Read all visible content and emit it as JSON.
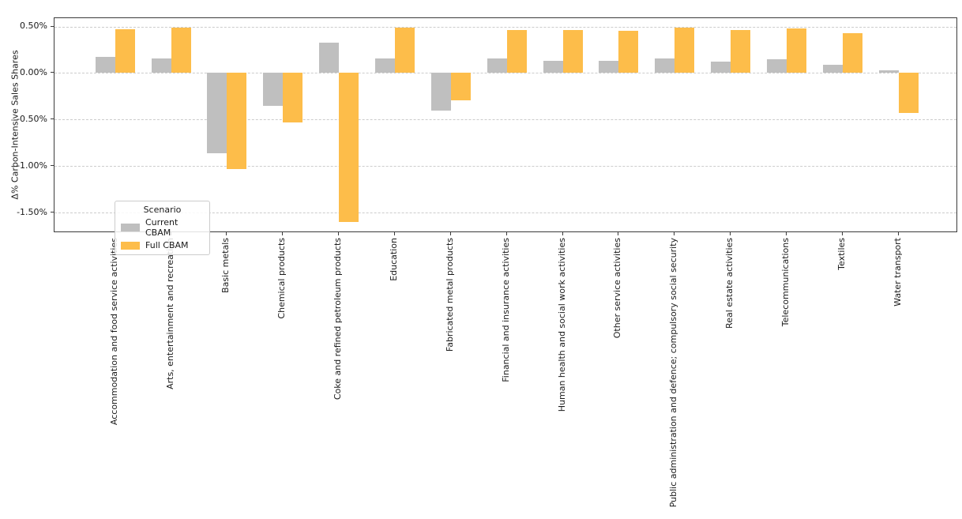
{
  "chart_data": {
    "type": "bar",
    "title": "",
    "xlabel": "",
    "ylabel": "Δ% Carbon-Intensive Sales Shares",
    "ylim": [
      -1.72,
      0.59
    ],
    "grid": "horizontal-dashed",
    "yticks": [
      0.5,
      0.0,
      -0.5,
      -1.0,
      -1.5
    ],
    "ytick_labels": [
      "0.50%",
      "0.00%",
      "-0.50%",
      "-1.00%",
      "-1.50%"
    ],
    "categories": [
      "Accommodation and food service activities",
      "Arts, entertainment and recreation",
      "Basic metals",
      "Chemical products",
      "Coke and refined petroleum products",
      "Education",
      "Fabricated metal products",
      "Financial and insurance activities",
      "Human health and social work activities",
      "Other service activities",
      "Public administration and defence; compulsory social security",
      "Real estate activities",
      "Telecommunications",
      "Textiles",
      "Water transport"
    ],
    "series": [
      {
        "name": "Current CBAM",
        "color": "#bfbfbf",
        "values": [
          0.17,
          0.16,
          -0.86,
          -0.35,
          0.33,
          0.16,
          -0.4,
          0.16,
          0.13,
          0.13,
          0.16,
          0.12,
          0.15,
          0.09,
          0.03
        ]
      },
      {
        "name": "Full CBAM",
        "color": "#fdbd4a",
        "values": [
          0.47,
          0.49,
          -1.03,
          -0.53,
          -1.6,
          0.49,
          -0.29,
          0.46,
          0.46,
          0.45,
          0.49,
          0.46,
          0.48,
          0.43,
          -0.43
        ]
      }
    ],
    "legend": {
      "title": "Scenario",
      "position": "lower-left"
    }
  }
}
